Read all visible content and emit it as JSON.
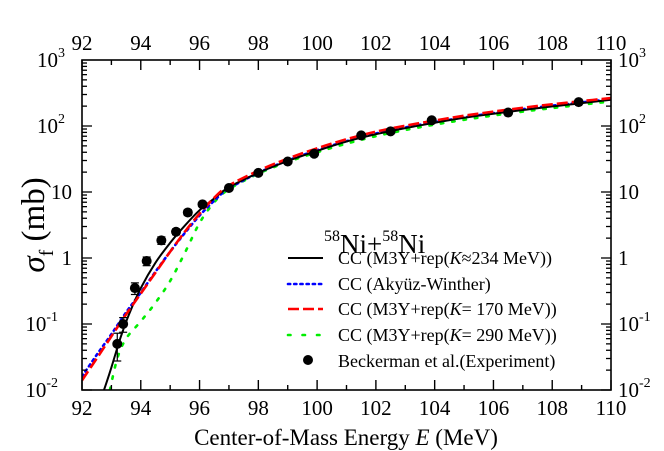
{
  "chart_data": {
    "type": "line",
    "title": "58Ni+58Ni",
    "annotation": {
      "mass1": "58",
      "sym1": "Ni+",
      "mass2": "58",
      "sym2": "Ni"
    },
    "xlabel": "Center-of-Mass Energy E (MeV)",
    "xlabel_parts": {
      "pre": "Center-of-Mass Energy ",
      "italic": "E",
      "post": " (MeV)"
    },
    "ylabel": "σf (mb)",
    "ylabel_parts": {
      "sigma": "σ",
      "sub": "f",
      "unit": " (mb)"
    },
    "xlim": [
      92,
      110
    ],
    "ylim": [
      0.01,
      1000
    ],
    "yscale": "log",
    "x_ticks": [
      "92",
      "94",
      "96",
      "98",
      "100",
      "102",
      "104",
      "106",
      "108",
      "110"
    ],
    "y_ticks": [
      {
        "base": "10",
        "exp": "3",
        "value": 1000
      },
      {
        "base": "10",
        "exp": "2",
        "value": 100
      },
      {
        "base": "10",
        "exp": "",
        "value": 10
      },
      {
        "base": "1",
        "exp": "",
        "value": 1
      },
      {
        "base": "10",
        "exp": "-1",
        "value": 0.1
      },
      {
        "base": "10",
        "exp": "-2",
        "value": 0.01
      }
    ],
    "grid": false,
    "legend_position": "lower right",
    "series": [
      {
        "name": "CC (M3Y+rep(K≈234 MeV))",
        "label_pre": "CC (M3Y+rep(",
        "label_italic": "K",
        "label_post": "≈234 MeV))",
        "color": "#000000",
        "style": "solid",
        "x": [
          92.75,
          93.0,
          93.3,
          93.6,
          94.0,
          94.5,
          95.0,
          95.5,
          96.0,
          96.5,
          97.0,
          98.0,
          99.0,
          100.0,
          101.0,
          102.0,
          103.0,
          104.0,
          105.0,
          106.0,
          107.0,
          108.0,
          109.0,
          110.0
        ],
        "y": [
          0.01,
          0.022,
          0.06,
          0.14,
          0.35,
          0.85,
          1.7,
          3.1,
          5.3,
          8.0,
          11.8,
          19.5,
          29.5,
          42,
          58,
          75,
          93,
          112,
          133,
          153,
          175,
          198,
          222,
          250
        ]
      },
      {
        "name": "CC (Akyüz-Winther)",
        "label_pre": "CC (Akyüz-Winther)",
        "label_italic": "",
        "label_post": "",
        "color": "#0000ff",
        "style": "dotted",
        "x": [
          92.0,
          92.5,
          93.0,
          93.5,
          94.0,
          94.5,
          95.0,
          95.5,
          96.0,
          96.5,
          97.0,
          98.0,
          99.0,
          100.0,
          101.0,
          102.0,
          103.0,
          104.0,
          105.0,
          106.0,
          107.0,
          108.0,
          109.0,
          110.0
        ],
        "y": [
          0.016,
          0.034,
          0.07,
          0.15,
          0.3,
          0.62,
          1.25,
          2.4,
          4.4,
          7.4,
          11.3,
          19.5,
          30,
          43,
          59,
          77,
          95,
          114,
          135,
          157,
          180,
          203,
          228,
          255
        ]
      },
      {
        "name": "CC (M3Y+rep(K= 170 MeV))",
        "label_pre": "CC (M3Y+rep(",
        "label_italic": "K",
        "label_post": "= 170 MeV))",
        "color": "#ff0000",
        "style": "dashed",
        "x": [
          92.0,
          92.5,
          93.0,
          93.5,
          94.0,
          94.5,
          95.0,
          95.5,
          96.0,
          96.5,
          97.0,
          98.0,
          99.0,
          100.0,
          101.0,
          102.0,
          103.0,
          104.0,
          105.0,
          106.0,
          107.0,
          108.0,
          109.0,
          110.0
        ],
        "y": [
          0.014,
          0.03,
          0.065,
          0.14,
          0.29,
          0.6,
          1.25,
          2.5,
          4.7,
          8.2,
          12.5,
          21,
          32,
          46,
          63,
          82,
          101,
          121,
          143,
          165,
          189,
          213,
          238,
          265
        ]
      },
      {
        "name": "CC (M3Y+rep(K= 290 MeV))",
        "label_pre": "CC (M3Y+rep(",
        "label_italic": "K",
        "label_post": "= 290 MeV))",
        "color": "#00ee00",
        "style": "dotted-sparse",
        "x": [
          92.95,
          93.2,
          93.5,
          94.0,
          94.5,
          95.0,
          95.5,
          96.0,
          96.5,
          97.0,
          98.0,
          99.0,
          100.0,
          101.0,
          102.0,
          103.0,
          104.0,
          105.0,
          106.0,
          107.0,
          108.0,
          109.0,
          110.0
        ],
        "y": [
          0.01,
          0.03,
          0.06,
          0.11,
          0.21,
          0.45,
          1.2,
          3.4,
          7.0,
          11.0,
          19,
          28.5,
          40,
          54,
          70,
          87,
          105,
          124,
          144,
          165,
          187,
          210,
          235
        ]
      }
    ],
    "experiment": {
      "name": "Beckerman et al.(Experiment)",
      "color": "#000000",
      "marker": "circle",
      "x": [
        93.2,
        93.4,
        93.8,
        94.2,
        94.7,
        95.2,
        95.6,
        96.1,
        97.0,
        98.0,
        99.0,
        99.9,
        101.5,
        102.5,
        103.9,
        106.5,
        108.9
      ],
      "y": [
        0.05,
        0.1,
        0.35,
        0.9,
        1.85,
        2.5,
        4.9,
        6.5,
        11.5,
        19.5,
        29,
        38,
        72,
        83,
        122,
        160,
        230
      ],
      "yerr_rel": [
        0.45,
        0.25,
        0.2,
        0.15,
        0.13,
        0.1,
        0.1,
        0.08,
        0.06,
        0.05,
        0.05,
        0.05,
        0.04,
        0.04,
        0.04,
        0.04,
        0.04
      ]
    }
  }
}
